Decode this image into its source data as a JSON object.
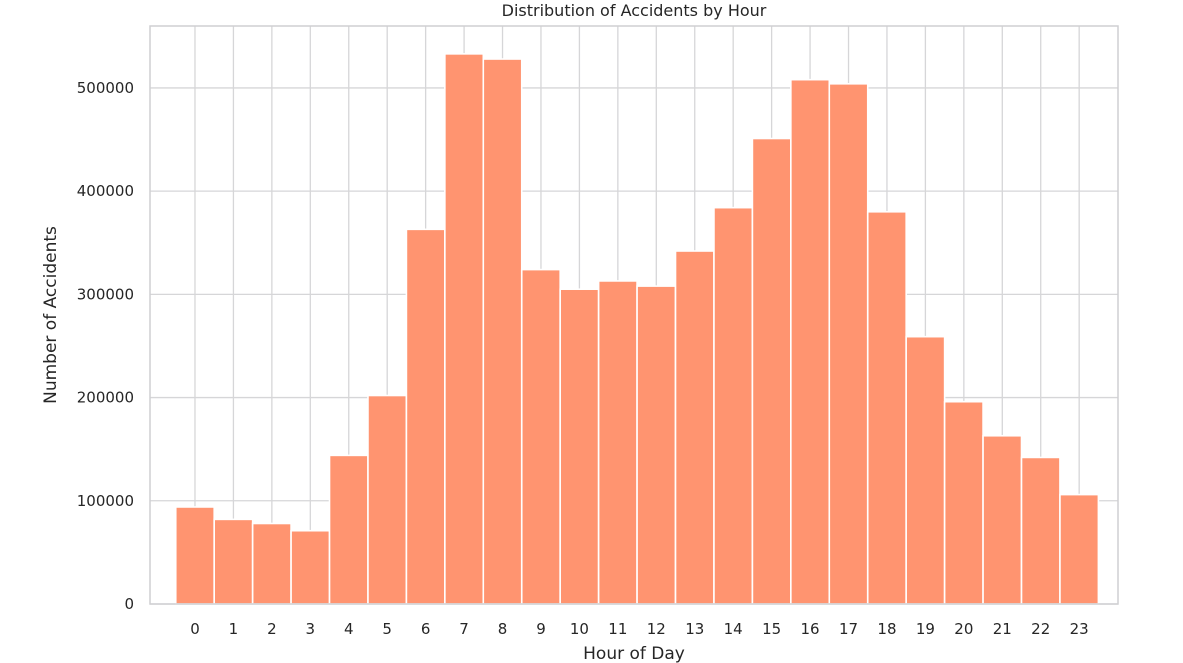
{
  "chart_data": {
    "type": "bar",
    "title": "Distribution of Accidents by Hour",
    "xlabel": "Hour of Day",
    "ylabel": "Number of Accidents",
    "categories": [
      "0",
      "1",
      "2",
      "3",
      "4",
      "5",
      "6",
      "7",
      "8",
      "9",
      "10",
      "11",
      "12",
      "13",
      "14",
      "15",
      "16",
      "17",
      "18",
      "19",
      "20",
      "21",
      "22",
      "23"
    ],
    "values": [
      94000,
      82000,
      78000,
      71000,
      144000,
      202000,
      363000,
      533000,
      528000,
      324000,
      305000,
      313000,
      308000,
      342000,
      384000,
      451000,
      508000,
      504000,
      380000,
      259000,
      196000,
      163000,
      142000,
      106000
    ],
    "yticks": [
      0,
      100000,
      200000,
      300000,
      400000,
      500000
    ],
    "ytick_labels": [
      "0",
      "100000",
      "200000",
      "300000",
      "400000",
      "500000"
    ],
    "ylim": [
      0,
      560000
    ],
    "xlim": [
      -1.17,
      24.01
    ],
    "grid": true,
    "bar_color": "#ff9470",
    "grid_color": "#d6d6d8",
    "frame_color": "#cfcfd2"
  }
}
